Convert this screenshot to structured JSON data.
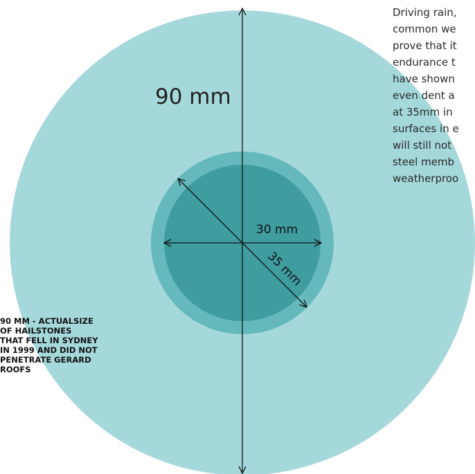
{
  "diagram": {
    "large_label": "90 mm",
    "inner_label": "30 mm",
    "diagonal_label": "35 mm",
    "colors": {
      "large_circle": "#a5d8db",
      "medium_circle": "#65b9bc",
      "small_circle": "#3f9c9f",
      "line": "#111111"
    }
  },
  "caption": {
    "lines": [
      "90 MM - ACTUALSIZE",
      "OF HAILSTONES",
      "THAT FELL IN SYDNEY",
      "IN 1999 AND DID NOT",
      "PENETRATE GERARD",
      "ROOFS"
    ]
  },
  "paragraph": {
    "lines": [
      "Driving rain,",
      "common we",
      "prove that it",
      "endurance t",
      "have shown",
      "even dent a",
      "at 35mm in",
      "surfaces in e",
      "will still not",
      "steel memb",
      "weatherproo"
    ]
  }
}
